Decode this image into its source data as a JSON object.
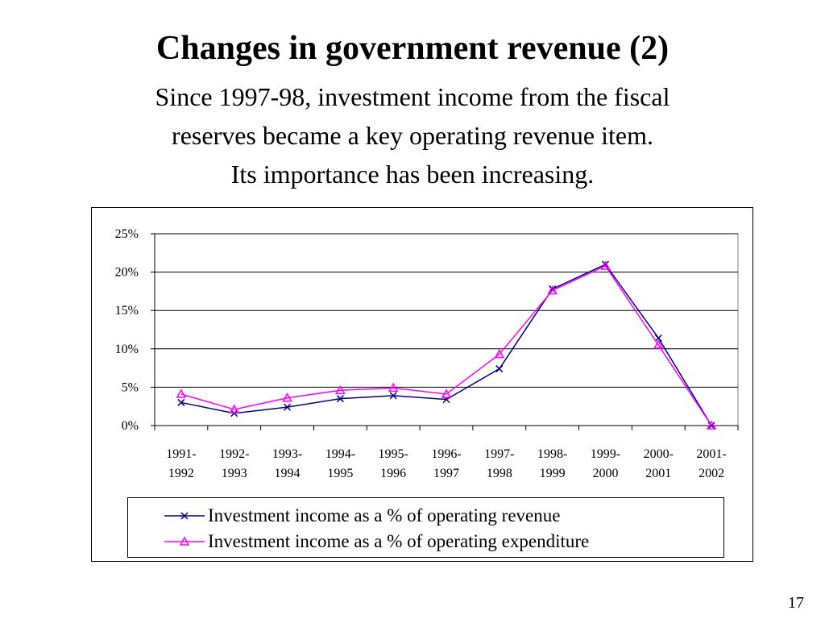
{
  "slide": {
    "title": "Changes in government revenue (2)",
    "subtitle_lines": [
      "Since 1997-98, investment income from the fiscal",
      "reserves became a key operating revenue item.",
      "Its importance has been increasing."
    ],
    "page_number": "17"
  },
  "chart_data": {
    "type": "line",
    "categories": [
      [
        "1991-",
        "1992"
      ],
      [
        "1992-",
        "1993"
      ],
      [
        "1993-",
        "1994"
      ],
      [
        "1994-",
        "1995"
      ],
      [
        "1995-",
        "1996"
      ],
      [
        "1996-",
        "1997"
      ],
      [
        "1997-",
        "1998"
      ],
      [
        "1998-",
        "1999"
      ],
      [
        "1999-",
        "2000"
      ],
      [
        "2000-",
        "2001"
      ],
      [
        "2001-",
        "2002"
      ]
    ],
    "y_ticks": [
      "0%",
      "5%",
      "10%",
      "15%",
      "20%",
      "25%"
    ],
    "ylim": [
      0,
      25
    ],
    "grid": true,
    "legend_position": "bottom",
    "series": [
      {
        "name": "Investment income as a % of operating revenue",
        "marker": "x",
        "color": "#000080",
        "values": [
          3.0,
          1.6,
          2.4,
          3.5,
          3.9,
          3.4,
          7.4,
          17.8,
          21.0,
          11.4,
          0.0
        ]
      },
      {
        "name": "Investment income as a % of operating expenditure",
        "marker": "triangle",
        "color": "#ff00ff",
        "values": [
          4.1,
          2.1,
          3.6,
          4.6,
          4.9,
          4.1,
          9.3,
          17.6,
          20.8,
          10.5,
          0.0
        ]
      }
    ]
  }
}
